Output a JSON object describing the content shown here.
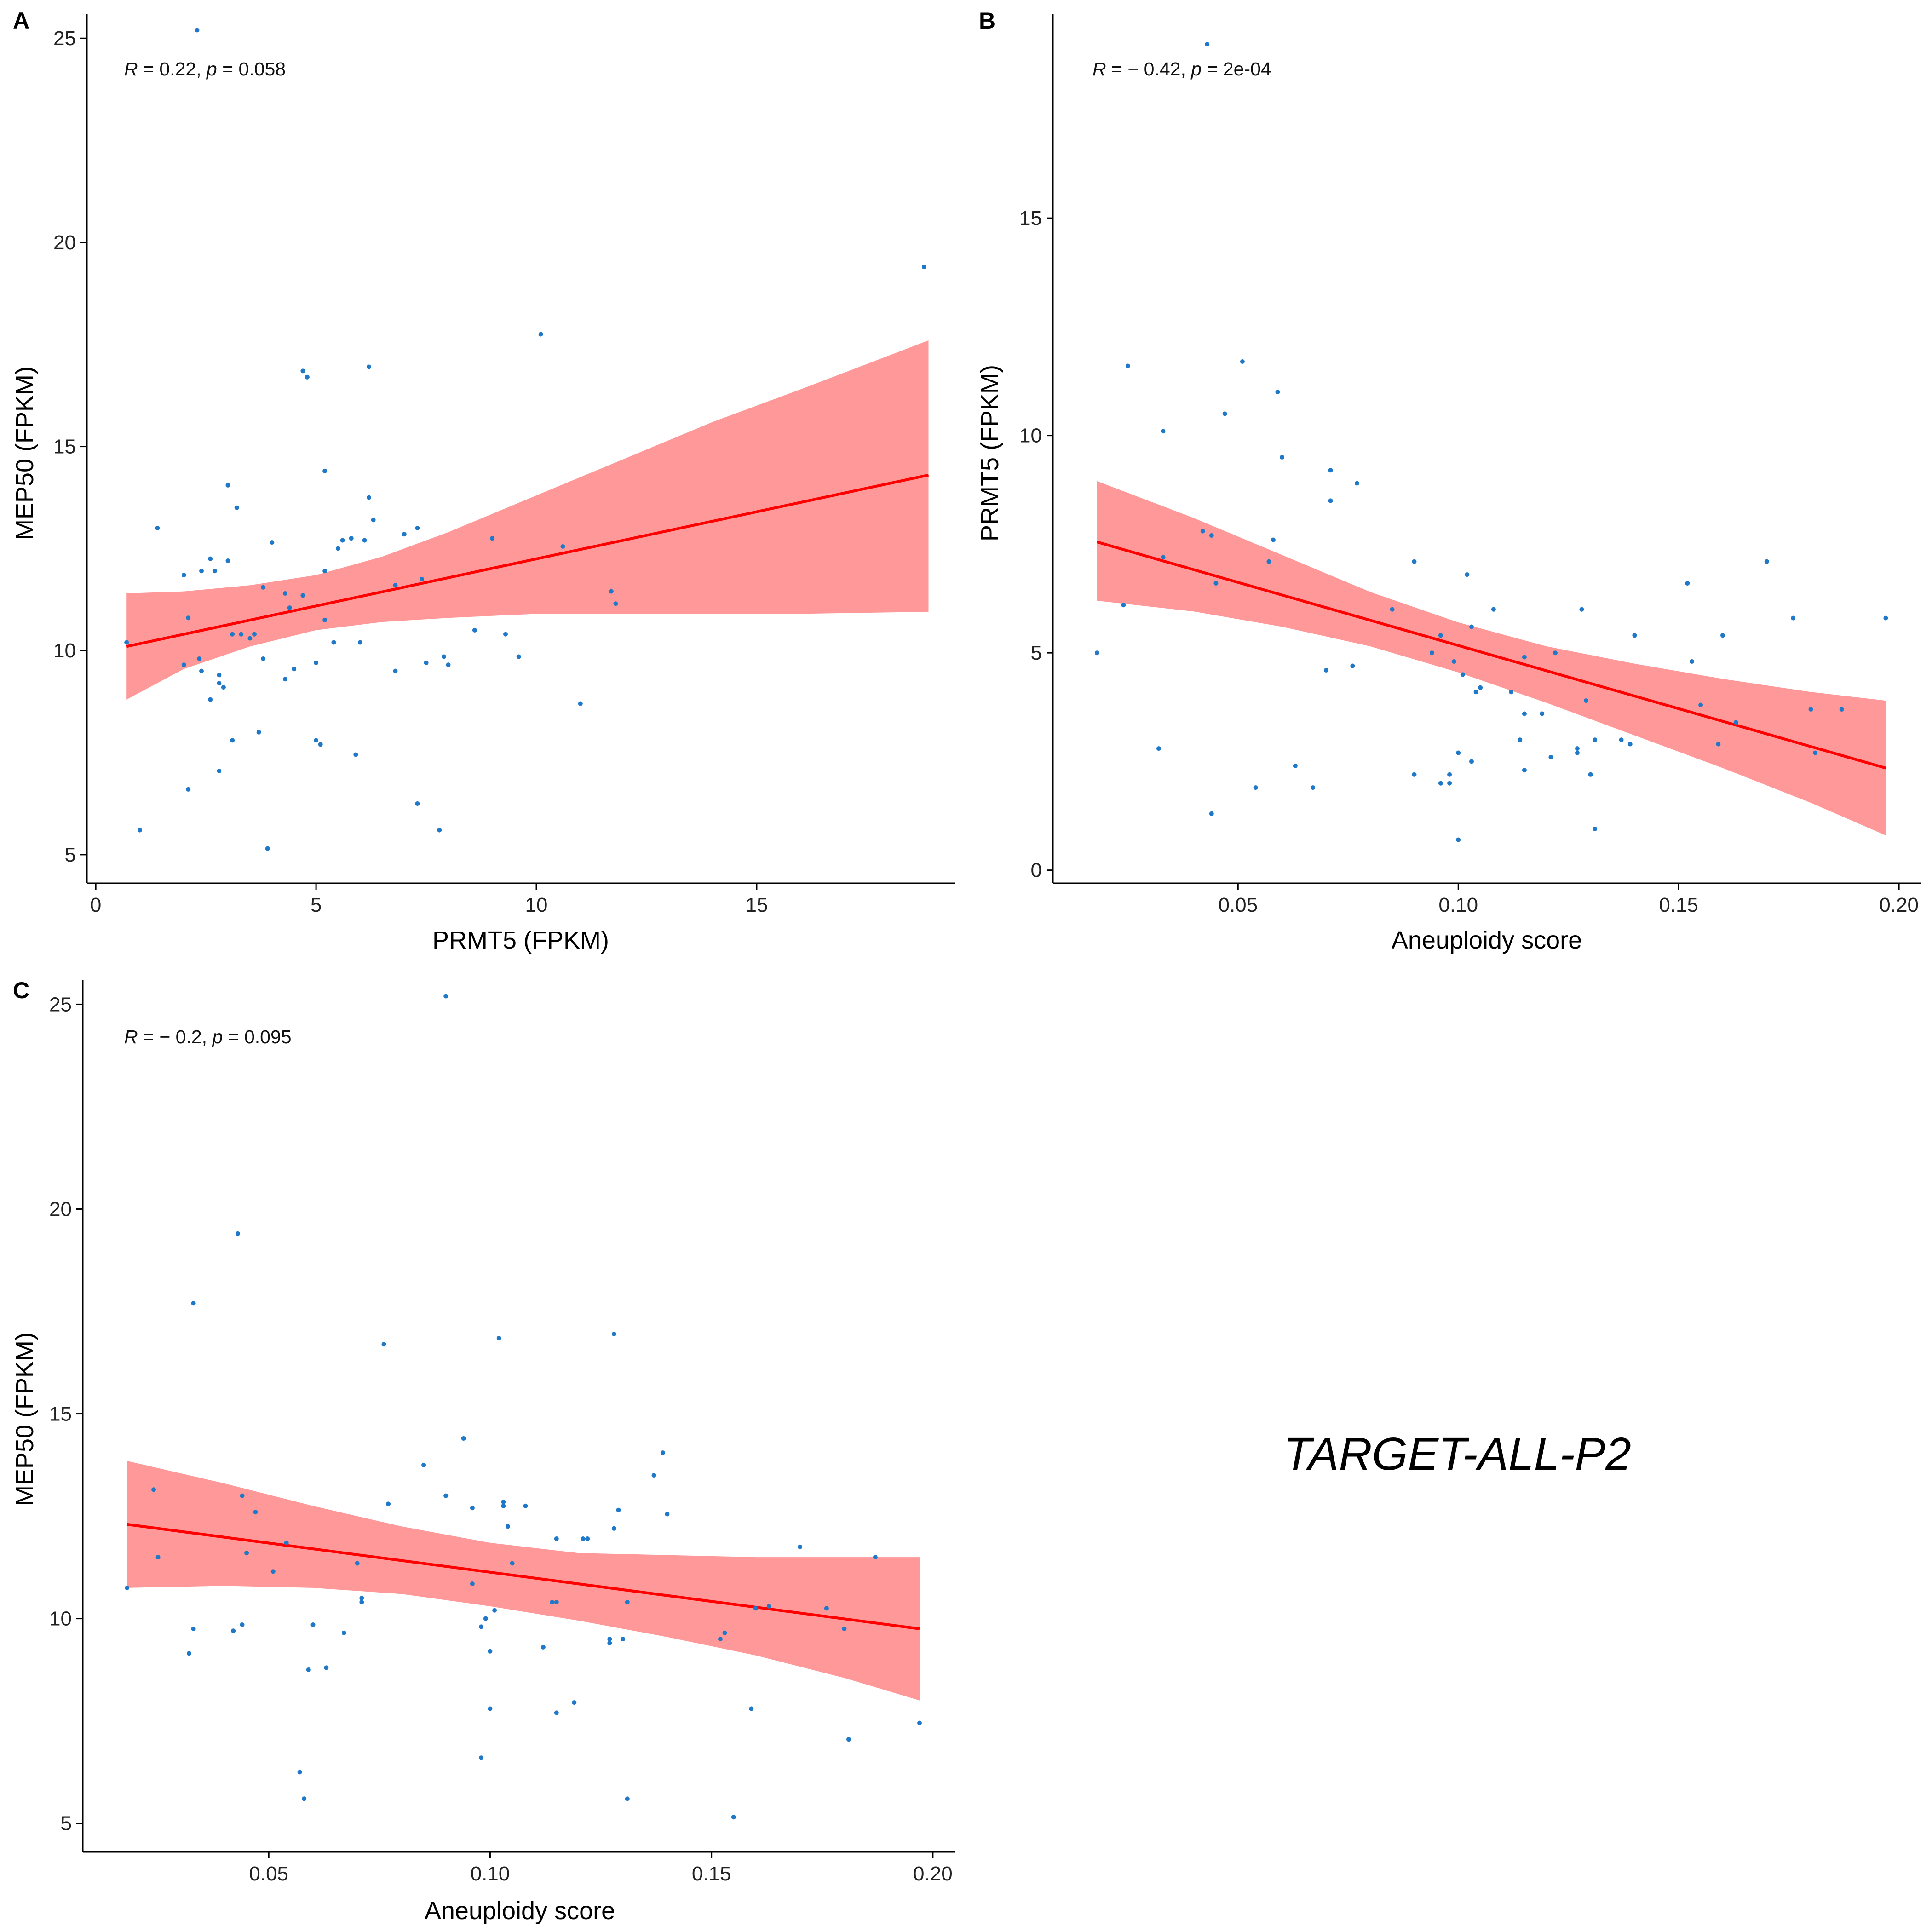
{
  "figure": {
    "dataset_label": "TARGET-ALL-P2",
    "colors": {
      "points": "#1F78C8",
      "fit_line": "#FF0000",
      "ci_band": "#FF9999",
      "axis": "#000000"
    }
  },
  "chart_data": [
    {
      "panel": "A",
      "type": "scatter",
      "title": "",
      "xlabel": "PRMT5 (FPKM)",
      "ylabel": "MEP50 (FPKM)",
      "stat": {
        "r_sym": "R",
        "r_val": " = 0.22, ",
        "p_sym": "p",
        "p_val": " = 0.058"
      },
      "xlim": [
        -0.2,
        19.5
      ],
      "ylim": [
        4.3,
        25.6
      ],
      "xticks": [
        0,
        5,
        10,
        15
      ],
      "xtick_labels": [
        "0",
        "5",
        "10",
        "15"
      ],
      "yticks": [
        5,
        10,
        15,
        20,
        25
      ],
      "ytick_labels": [
        "5",
        "10",
        "15",
        "20",
        "25"
      ],
      "grid": false,
      "fit": {
        "x0": 0.7,
        "y0": 10.1,
        "x1": 18.9,
        "y1": 14.3
      },
      "ci": {
        "x": [
          0.7,
          2.0,
          3.5,
          5.0,
          6.5,
          8.0,
          10.0,
          12.0,
          14.0,
          16.0,
          18.9
        ],
        "upper": [
          11.4,
          11.45,
          11.6,
          11.85,
          12.3,
          12.9,
          13.8,
          14.7,
          15.6,
          16.4,
          17.6
        ],
        "lower": [
          8.8,
          9.55,
          10.1,
          10.5,
          10.7,
          10.8,
          10.9,
          10.9,
          10.9,
          10.9,
          10.95
        ]
      },
      "points": [
        [
          0.7,
          10.2
        ],
        [
          1.0,
          5.6
        ],
        [
          1.4,
          13.0
        ],
        [
          2.0,
          11.85
        ],
        [
          2.0,
          9.65
        ],
        [
          2.1,
          10.8
        ],
        [
          2.1,
          6.6
        ],
        [
          2.3,
          25.2
        ],
        [
          2.35,
          9.8
        ],
        [
          2.4,
          9.5
        ],
        [
          2.4,
          11.95
        ],
        [
          2.6,
          12.25
        ],
        [
          2.6,
          8.8
        ],
        [
          2.7,
          11.95
        ],
        [
          2.8,
          9.2
        ],
        [
          2.8,
          9.4
        ],
        [
          2.8,
          7.05
        ],
        [
          2.9,
          9.1
        ],
        [
          3.0,
          12.2
        ],
        [
          3.0,
          14.05
        ],
        [
          3.1,
          7.8
        ],
        [
          3.1,
          10.4
        ],
        [
          3.2,
          13.5
        ],
        [
          3.3,
          10.4
        ],
        [
          3.5,
          10.3
        ],
        [
          3.6,
          10.4
        ],
        [
          3.7,
          8.0
        ],
        [
          3.8,
          9.8
        ],
        [
          3.8,
          11.55
        ],
        [
          3.9,
          5.15
        ],
        [
          4.0,
          12.65
        ],
        [
          4.3,
          9.3
        ],
        [
          4.3,
          11.4
        ],
        [
          4.4,
          11.05
        ],
        [
          4.5,
          9.55
        ],
        [
          4.7,
          16.85
        ],
        [
          4.7,
          11.35
        ],
        [
          4.8,
          16.7
        ],
        [
          5.0,
          9.7
        ],
        [
          5.0,
          7.8
        ],
        [
          5.1,
          7.7
        ],
        [
          5.2,
          10.75
        ],
        [
          5.2,
          11.95
        ],
        [
          5.2,
          14.4
        ],
        [
          5.4,
          10.2
        ],
        [
          5.5,
          12.5
        ],
        [
          5.6,
          12.7
        ],
        [
          5.8,
          12.75
        ],
        [
          5.9,
          7.45
        ],
        [
          6.0,
          10.2
        ],
        [
          6.1,
          12.7
        ],
        [
          6.2,
          13.75
        ],
        [
          6.2,
          16.95
        ],
        [
          6.3,
          13.2
        ],
        [
          6.8,
          11.6
        ],
        [
          6.8,
          9.5
        ],
        [
          7.0,
          12.85
        ],
        [
          7.3,
          13.0
        ],
        [
          7.3,
          6.25
        ],
        [
          7.4,
          11.75
        ],
        [
          7.5,
          9.7
        ],
        [
          7.8,
          5.6
        ],
        [
          7.9,
          9.85
        ],
        [
          8.0,
          9.65
        ],
        [
          8.6,
          10.5
        ],
        [
          9.0,
          12.75
        ],
        [
          9.3,
          10.4
        ],
        [
          9.6,
          9.85
        ],
        [
          10.1,
          17.75
        ],
        [
          10.6,
          12.55
        ],
        [
          11.0,
          8.7
        ],
        [
          11.7,
          11.45
        ],
        [
          11.8,
          11.15
        ],
        [
          18.8,
          19.4
        ]
      ]
    },
    {
      "panel": "B",
      "type": "scatter",
      "title": "",
      "xlabel": "Aneuploidy score",
      "ylabel": "PRMT5 (FPKM)",
      "stat": {
        "r_sym": "R",
        "r_val": " = − 0.42, ",
        "p_sym": "p",
        "p_val": " = 2e-04"
      },
      "xlim": [
        0.008,
        0.205
      ],
      "ylim": [
        -0.3,
        19.7
      ],
      "xticks": [
        0.05,
        0.1,
        0.15,
        0.2
      ],
      "xtick_labels": [
        "0.05",
        "0.10",
        "0.15",
        "0.20"
      ],
      "yticks": [
        0,
        5,
        10,
        15
      ],
      "ytick_labels": [
        "0",
        "5",
        "10",
        "15"
      ],
      "grid": false,
      "fit": {
        "x0": 0.018,
        "y0": 7.55,
        "x1": 0.197,
        "y1": 2.35
      },
      "ci": {
        "x": [
          0.018,
          0.04,
          0.06,
          0.08,
          0.1,
          0.12,
          0.14,
          0.16,
          0.18,
          0.197
        ],
        "upper": [
          8.95,
          8.1,
          7.25,
          6.4,
          5.7,
          5.15,
          4.75,
          4.4,
          4.1,
          3.9
        ],
        "lower": [
          6.2,
          5.95,
          5.6,
          5.15,
          4.55,
          3.85,
          3.1,
          2.35,
          1.55,
          0.8
        ]
      },
      "points": [
        [
          0.018,
          5.0
        ],
        [
          0.024,
          6.1
        ],
        [
          0.025,
          11.6
        ],
        [
          0.032,
          2.8
        ],
        [
          0.033,
          10.1
        ],
        [
          0.033,
          7.2
        ],
        [
          0.042,
          7.8
        ],
        [
          0.043,
          19.0
        ],
        [
          0.044,
          7.7
        ],
        [
          0.044,
          1.3
        ],
        [
          0.045,
          6.6
        ],
        [
          0.047,
          10.5
        ],
        [
          0.051,
          11.7
        ],
        [
          0.054,
          1.9
        ],
        [
          0.057,
          7.1
        ],
        [
          0.058,
          7.6
        ],
        [
          0.059,
          11.0
        ],
        [
          0.06,
          9.5
        ],
        [
          0.063,
          2.4
        ],
        [
          0.067,
          1.9
        ],
        [
          0.07,
          4.6
        ],
        [
          0.071,
          9.2
        ],
        [
          0.071,
          8.5
        ],
        [
          0.076,
          4.7
        ],
        [
          0.077,
          8.9
        ],
        [
          0.085,
          6.0
        ],
        [
          0.09,
          7.1
        ],
        [
          0.09,
          2.2
        ],
        [
          0.094,
          5.0
        ],
        [
          0.096,
          5.4
        ],
        [
          0.096,
          2.0
        ],
        [
          0.098,
          2.0
        ],
        [
          0.098,
          2.2
        ],
        [
          0.099,
          4.8
        ],
        [
          0.1,
          2.7
        ],
        [
          0.1,
          0.7
        ],
        [
          0.101,
          4.5
        ],
        [
          0.102,
          6.8
        ],
        [
          0.103,
          2.5
        ],
        [
          0.103,
          5.6
        ],
        [
          0.104,
          4.1
        ],
        [
          0.105,
          4.2
        ],
        [
          0.108,
          6.0
        ],
        [
          0.112,
          4.1
        ],
        [
          0.114,
          3.0
        ],
        [
          0.115,
          3.6
        ],
        [
          0.115,
          4.9
        ],
        [
          0.115,
          2.3
        ],
        [
          0.119,
          3.6
        ],
        [
          0.121,
          2.6
        ],
        [
          0.122,
          5.0
        ],
        [
          0.127,
          2.8
        ],
        [
          0.127,
          2.7
        ],
        [
          0.128,
          6.0
        ],
        [
          0.129,
          3.9
        ],
        [
          0.13,
          2.2
        ],
        [
          0.131,
          3.0
        ],
        [
          0.131,
          0.95
        ],
        [
          0.137,
          3.0
        ],
        [
          0.139,
          2.9
        ],
        [
          0.14,
          5.4
        ],
        [
          0.152,
          6.6
        ],
        [
          0.153,
          4.8
        ],
        [
          0.155,
          3.8
        ],
        [
          0.159,
          2.9
        ],
        [
          0.16,
          5.4
        ],
        [
          0.163,
          3.4
        ],
        [
          0.17,
          7.1
        ],
        [
          0.176,
          5.8
        ],
        [
          0.18,
          3.7
        ],
        [
          0.181,
          2.7
        ],
        [
          0.187,
          3.7
        ],
        [
          0.197,
          5.8
        ]
      ]
    },
    {
      "panel": "C",
      "type": "scatter",
      "title": "",
      "xlabel": "Aneuploidy score",
      "ylabel": "MEP50 (FPKM)",
      "stat": {
        "r_sym": "R",
        "r_val": " = − 0.2, ",
        "p_sym": "p",
        "p_val": " = 0.095"
      },
      "xlim": [
        0.008,
        0.205
      ],
      "ylim": [
        4.3,
        25.6
      ],
      "xticks": [
        0.05,
        0.1,
        0.15,
        0.2
      ],
      "xtick_labels": [
        "0.05",
        "0.10",
        "0.15",
        "0.20"
      ],
      "yticks": [
        5,
        10,
        15,
        20,
        25
      ],
      "ytick_labels": [
        "5",
        "10",
        "15",
        "20",
        "25"
      ],
      "grid": false,
      "fit": {
        "x0": 0.018,
        "y0": 12.3,
        "x1": 0.197,
        "y1": 9.75
      },
      "ci": {
        "x": [
          0.018,
          0.04,
          0.06,
          0.08,
          0.1,
          0.12,
          0.14,
          0.16,
          0.18,
          0.197
        ],
        "upper": [
          13.85,
          13.3,
          12.75,
          12.25,
          11.85,
          11.6,
          11.55,
          11.5,
          11.5,
          11.5
        ],
        "lower": [
          10.75,
          10.8,
          10.75,
          10.6,
          10.3,
          9.95,
          9.55,
          9.1,
          8.55,
          8.0
        ]
      },
      "points": [
        [
          0.018,
          10.75
        ],
        [
          0.024,
          13.15
        ],
        [
          0.025,
          11.5
        ],
        [
          0.032,
          9.15
        ],
        [
          0.033,
          17.7
        ],
        [
          0.033,
          9.75
        ],
        [
          0.042,
          9.7
        ],
        [
          0.043,
          19.4
        ],
        [
          0.044,
          9.85
        ],
        [
          0.044,
          13.0
        ],
        [
          0.045,
          11.6
        ],
        [
          0.047,
          12.6
        ],
        [
          0.051,
          11.15
        ],
        [
          0.054,
          11.85
        ],
        [
          0.057,
          6.25
        ],
        [
          0.058,
          5.6
        ],
        [
          0.059,
          8.75
        ],
        [
          0.06,
          9.85
        ],
        [
          0.063,
          8.8
        ],
        [
          0.067,
          9.65
        ],
        [
          0.07,
          11.35
        ],
        [
          0.071,
          10.5
        ],
        [
          0.071,
          10.4
        ],
        [
          0.076,
          16.7
        ],
        [
          0.077,
          12.8
        ],
        [
          0.085,
          13.75
        ],
        [
          0.09,
          13.0
        ],
        [
          0.09,
          25.2
        ],
        [
          0.094,
          14.4
        ],
        [
          0.096,
          10.85
        ],
        [
          0.096,
          12.7
        ],
        [
          0.098,
          6.6
        ],
        [
          0.098,
          9.8
        ],
        [
          0.099,
          10.0
        ],
        [
          0.1,
          7.8
        ],
        [
          0.1,
          9.2
        ],
        [
          0.101,
          10.2
        ],
        [
          0.102,
          16.85
        ],
        [
          0.103,
          12.85
        ],
        [
          0.103,
          12.75
        ],
        [
          0.104,
          12.25
        ],
        [
          0.105,
          11.35
        ],
        [
          0.108,
          12.75
        ],
        [
          0.112,
          9.3
        ],
        [
          0.114,
          10.4
        ],
        [
          0.115,
          7.7
        ],
        [
          0.115,
          10.4
        ],
        [
          0.115,
          11.95
        ],
        [
          0.119,
          7.95
        ],
        [
          0.121,
          11.95
        ],
        [
          0.122,
          11.95
        ],
        [
          0.127,
          9.4
        ],
        [
          0.127,
          9.5
        ],
        [
          0.128,
          16.95
        ],
        [
          0.128,
          12.2
        ],
        [
          0.129,
          12.65
        ],
        [
          0.13,
          9.5
        ],
        [
          0.131,
          10.4
        ],
        [
          0.131,
          5.6
        ],
        [
          0.137,
          13.5
        ],
        [
          0.139,
          14.05
        ],
        [
          0.14,
          12.55
        ],
        [
          0.152,
          9.5
        ],
        [
          0.153,
          9.65
        ],
        [
          0.155,
          5.15
        ],
        [
          0.159,
          7.8
        ],
        [
          0.16,
          10.25
        ],
        [
          0.163,
          10.3
        ],
        [
          0.17,
          11.75
        ],
        [
          0.176,
          10.25
        ],
        [
          0.18,
          9.75
        ],
        [
          0.181,
          7.05
        ],
        [
          0.187,
          11.5
        ],
        [
          0.197,
          7.45
        ]
      ]
    }
  ]
}
